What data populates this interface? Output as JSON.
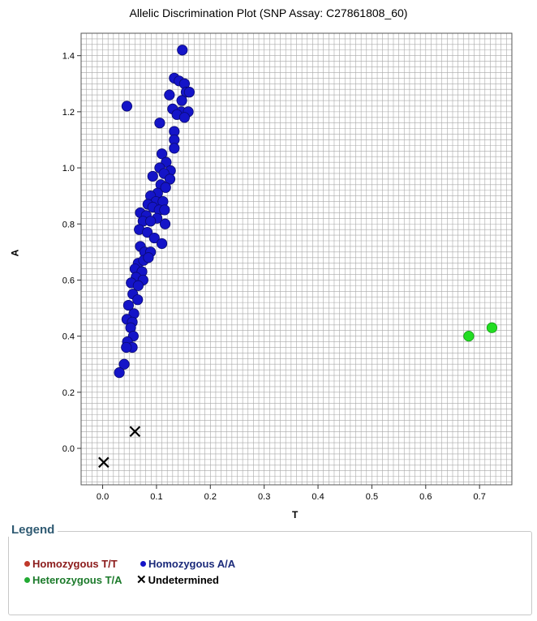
{
  "title": "Allelic Discrimination Plot (SNP Assay: C27861808_60)",
  "legend": {
    "title": "Legend",
    "items": [
      {
        "label": "Homozygous T/T",
        "color": "#8b1a1a",
        "marker": "dot"
      },
      {
        "label": "Homozygous A/A",
        "color": "#1b2a7a",
        "marker": "dot"
      },
      {
        "label": "Heterozygous T/A",
        "color": "#1b7a2a",
        "marker": "dot"
      },
      {
        "label": "Undetermined",
        "color": "#000000",
        "marker": "x"
      }
    ]
  },
  "chart_data": {
    "type": "scatter",
    "title": "Allelic Discrimination Plot (SNP Assay: C27861808_60)",
    "xlabel": "T",
    "ylabel": "A",
    "xlim": [
      -0.04,
      0.76
    ],
    "ylim": [
      -0.13,
      1.48
    ],
    "xticks": [
      "0.0",
      "0.1",
      "0.2",
      "0.3",
      "0.4",
      "0.5",
      "0.6",
      "0.7"
    ],
    "yticks": [
      "0.0",
      "0.2",
      "0.4",
      "0.6",
      "0.8",
      "1.0",
      "1.2",
      "1.4"
    ],
    "grid": true,
    "legend_position": "bottom",
    "series": [
      {
        "name": "Homozygous A/A",
        "color": "#1414c8",
        "marker": "dot",
        "points": [
          [
            0.148,
            1.42
          ],
          [
            0.133,
            1.32
          ],
          [
            0.142,
            1.31
          ],
          [
            0.152,
            1.3
          ],
          [
            0.155,
            1.27
          ],
          [
            0.161,
            1.27
          ],
          [
            0.124,
            1.26
          ],
          [
            0.147,
            1.24
          ],
          [
            0.045,
            1.22
          ],
          [
            0.13,
            1.21
          ],
          [
            0.146,
            1.2
          ],
          [
            0.159,
            1.2
          ],
          [
            0.138,
            1.19
          ],
          [
            0.152,
            1.18
          ],
          [
            0.106,
            1.16
          ],
          [
            0.133,
            1.13
          ],
          [
            0.133,
            1.1
          ],
          [
            0.133,
            1.07
          ],
          [
            0.11,
            1.05
          ],
          [
            0.118,
            1.02
          ],
          [
            0.106,
            1.0
          ],
          [
            0.126,
            0.99
          ],
          [
            0.114,
            0.98
          ],
          [
            0.125,
            0.96
          ],
          [
            0.093,
            0.97
          ],
          [
            0.108,
            0.94
          ],
          [
            0.102,
            0.91
          ],
          [
            0.117,
            0.93
          ],
          [
            0.089,
            0.9
          ],
          [
            0.099,
            0.88
          ],
          [
            0.112,
            0.88
          ],
          [
            0.084,
            0.87
          ],
          [
            0.093,
            0.86
          ],
          [
            0.105,
            0.85
          ],
          [
            0.115,
            0.85
          ],
          [
            0.07,
            0.84
          ],
          [
            0.081,
            0.83
          ],
          [
            0.101,
            0.82
          ],
          [
            0.075,
            0.81
          ],
          [
            0.089,
            0.81
          ],
          [
            0.116,
            0.8
          ],
          [
            0.068,
            0.78
          ],
          [
            0.083,
            0.77
          ],
          [
            0.096,
            0.75
          ],
          [
            0.11,
            0.73
          ],
          [
            0.07,
            0.72
          ],
          [
            0.078,
            0.7
          ],
          [
            0.089,
            0.7
          ],
          [
            0.066,
            0.66
          ],
          [
            0.076,
            0.67
          ],
          [
            0.085,
            0.68
          ],
          [
            0.06,
            0.64
          ],
          [
            0.073,
            0.63
          ],
          [
            0.062,
            0.61
          ],
          [
            0.075,
            0.6
          ],
          [
            0.053,
            0.59
          ],
          [
            0.066,
            0.58
          ],
          [
            0.056,
            0.55
          ],
          [
            0.065,
            0.53
          ],
          [
            0.048,
            0.51
          ],
          [
            0.058,
            0.48
          ],
          [
            0.045,
            0.46
          ],
          [
            0.055,
            0.45
          ],
          [
            0.052,
            0.43
          ],
          [
            0.057,
            0.4
          ],
          [
            0.046,
            0.38
          ],
          [
            0.055,
            0.36
          ],
          [
            0.044,
            0.36
          ],
          [
            0.04,
            0.3
          ],
          [
            0.031,
            0.27
          ]
        ]
      },
      {
        "name": "Heterozygous T/A",
        "color": "#22dd22",
        "marker": "dot",
        "points": [
          [
            0.68,
            0.4
          ],
          [
            0.723,
            0.43
          ]
        ]
      },
      {
        "name": "Undetermined",
        "color": "#000000",
        "marker": "x",
        "points": [
          [
            0.002,
            -0.05
          ],
          [
            0.06,
            0.06
          ]
        ]
      }
    ]
  }
}
